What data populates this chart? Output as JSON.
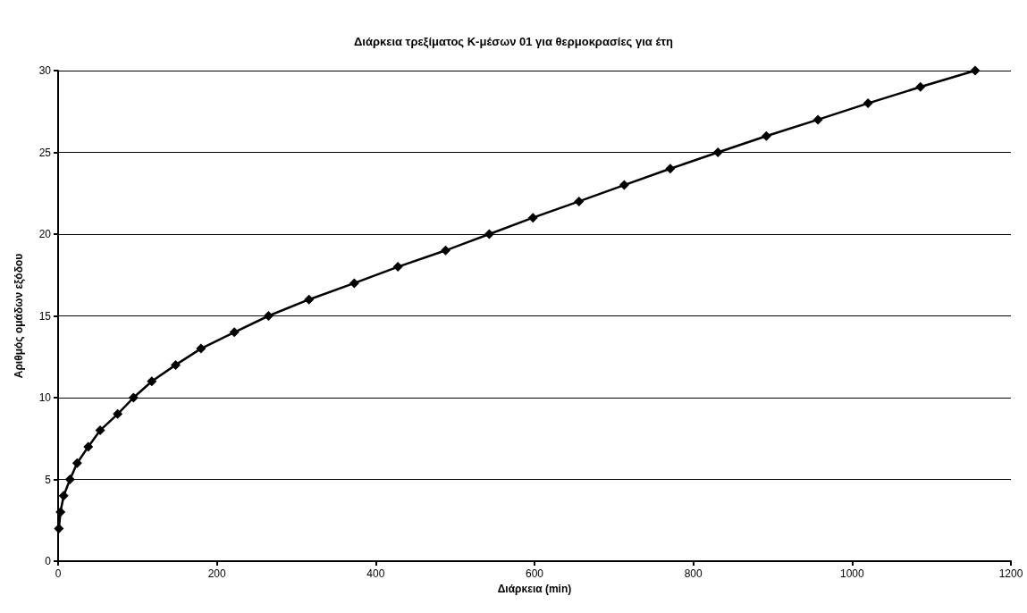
{
  "chart_data": {
    "type": "line",
    "title": "Διάρκεια τρεξίματος K-μέσων 01 για θερμοκρασίες για έτη",
    "xlabel": "Διάρκεια (min)",
    "ylabel": "Αριθμός ομάδων εξόδου",
    "x": [
      1,
      3,
      7,
      15,
      24,
      38,
      53,
      75,
      95,
      118,
      148,
      180,
      222,
      265,
      316,
      373,
      428,
      488,
      543,
      598,
      656,
      713,
      771,
      831,
      892,
      957,
      1020,
      1086,
      1155
    ],
    "series": [
      {
        "color": "#000000",
        "values": [
          2,
          3,
          4,
          5,
          6,
          7,
          8,
          9,
          10,
          11,
          12,
          13,
          14,
          15,
          16,
          17,
          18,
          19,
          20,
          21,
          22,
          23,
          24,
          25,
          26,
          27,
          28,
          29,
          30
        ]
      }
    ],
    "xlim": [
      0,
      1200
    ],
    "xticks": [
      0,
      200,
      400,
      600,
      800,
      1000,
      1200
    ],
    "ylim": [
      0,
      30
    ],
    "yticks": [
      0,
      5,
      10,
      15,
      20,
      25,
      30
    ],
    "grid": "y",
    "marker": "diamond",
    "line_style": "solid"
  }
}
